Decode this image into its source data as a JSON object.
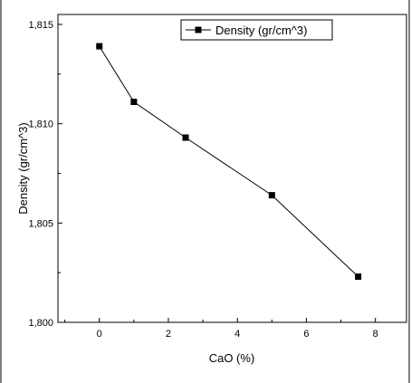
{
  "chart_data": {
    "type": "line",
    "xlabel": "CaO (%)",
    "ylabel": "Density (gr/cm^3)",
    "xlim": [
      -1.2,
      8.9
    ],
    "ylim": [
      1.8,
      1.8155
    ],
    "x_ticks": [
      0,
      2,
      4,
      6,
      8
    ],
    "x_tick_labels": [
      "0",
      "2",
      "4",
      "6",
      "8"
    ],
    "y_ticks": [
      1.8,
      1.805,
      1.81,
      1.815
    ],
    "y_tick_labels": [
      "1,800",
      "1,805",
      "1,810",
      "1,815"
    ],
    "legend_position": "top-right",
    "series": [
      {
        "name": "Density (gr/cm^3)",
        "marker": "square",
        "color": "#000000",
        "x": [
          0,
          1,
          2.5,
          5,
          7.5
        ],
        "y": [
          1.8139,
          1.8111,
          1.8093,
          1.8064,
          1.8023
        ]
      }
    ]
  }
}
